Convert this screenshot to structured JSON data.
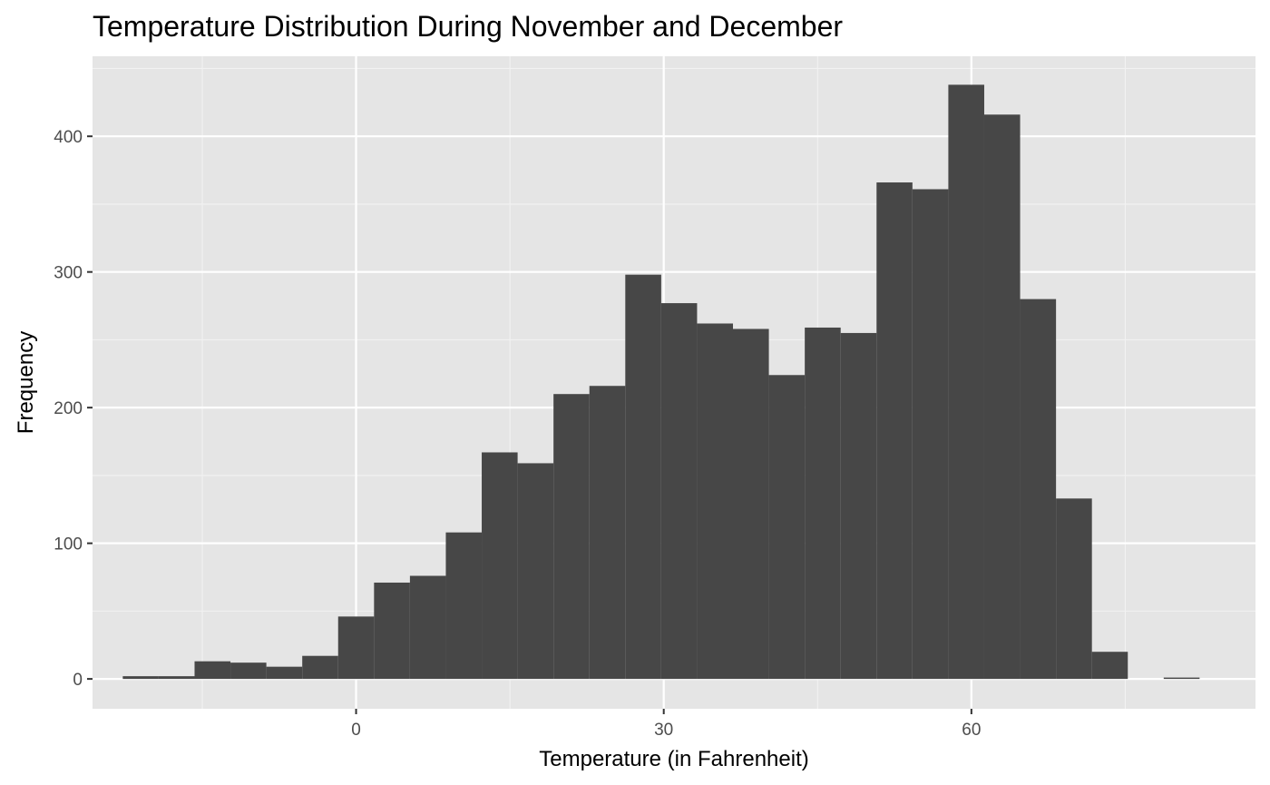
{
  "chart_data": {
    "type": "bar",
    "title": "Temperature Distribution During November and December",
    "xlabel": "Temperature (in Fahrenheit)",
    "ylabel": "Frequency",
    "xlim": [
      -25.7,
      87.7
    ],
    "ylim": [
      -22,
      459
    ],
    "x_ticks": [
      0,
      30,
      60
    ],
    "y_ticks": [
      0,
      100,
      200,
      300,
      400
    ],
    "bin_width": 3.5,
    "bins": [
      {
        "x0": -22.75,
        "x1": -19.25,
        "count": 2
      },
      {
        "x0": -19.25,
        "x1": -15.75,
        "count": 2
      },
      {
        "x0": -15.75,
        "x1": -12.25,
        "count": 13
      },
      {
        "x0": -12.25,
        "x1": -8.75,
        "count": 12
      },
      {
        "x0": -8.75,
        "x1": -5.25,
        "count": 9
      },
      {
        "x0": -5.25,
        "x1": -1.75,
        "count": 17
      },
      {
        "x0": -1.75,
        "x1": 1.75,
        "count": 46
      },
      {
        "x0": 1.75,
        "x1": 5.25,
        "count": 71
      },
      {
        "x0": 5.25,
        "x1": 8.75,
        "count": 76
      },
      {
        "x0": 8.75,
        "x1": 12.25,
        "count": 108
      },
      {
        "x0": 12.25,
        "x1": 15.75,
        "count": 167
      },
      {
        "x0": 15.75,
        "x1": 19.25,
        "count": 159
      },
      {
        "x0": 19.25,
        "x1": 22.75,
        "count": 210
      },
      {
        "x0": 22.75,
        "x1": 26.25,
        "count": 216
      },
      {
        "x0": 26.25,
        "x1": 29.75,
        "count": 298
      },
      {
        "x0": 29.75,
        "x1": 33.25,
        "count": 277
      },
      {
        "x0": 33.25,
        "x1": 36.75,
        "count": 262
      },
      {
        "x0": 36.75,
        "x1": 40.25,
        "count": 258
      },
      {
        "x0": 40.25,
        "x1": 43.75,
        "count": 224
      },
      {
        "x0": 43.75,
        "x1": 47.25,
        "count": 259
      },
      {
        "x0": 47.25,
        "x1": 50.75,
        "count": 255
      },
      {
        "x0": 50.75,
        "x1": 54.25,
        "count": 366
      },
      {
        "x0": 54.25,
        "x1": 57.75,
        "count": 361
      },
      {
        "x0": 57.75,
        "x1": 61.25,
        "count": 438
      },
      {
        "x0": 61.25,
        "x1": 64.75,
        "count": 416
      },
      {
        "x0": 64.75,
        "x1": 68.25,
        "count": 280
      },
      {
        "x0": 68.25,
        "x1": 71.75,
        "count": 133
      },
      {
        "x0": 71.75,
        "x1": 75.25,
        "count": 20
      },
      {
        "x0": 75.25,
        "x1": 78.75,
        "count": 0
      },
      {
        "x0": 78.75,
        "x1": 82.25,
        "count": 1
      }
    ],
    "grid": true,
    "legend": "none",
    "colors": {
      "bar_fill": "#474747",
      "panel_background": "#e5e5e5",
      "grid_major": "#ffffff",
      "grid_minor": "#f2f2f2"
    }
  }
}
